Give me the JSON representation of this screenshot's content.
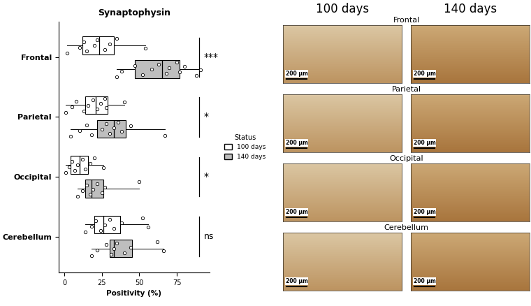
{
  "chart_data": {
    "type": "box",
    "title": "Synaptophysin",
    "orientation": "horizontal",
    "categories": [
      "Frontal",
      "Parietal",
      "Occipital",
      "Cerebellum"
    ],
    "x_label": "Positivity (%)",
    "xlim": [
      -4,
      97
    ],
    "xticks": [
      0,
      25,
      50,
      75
    ],
    "legend": "center left",
    "legend_title": "Status",
    "series": [
      {
        "name": "100 days",
        "color": "#ffffff",
        "stats": [
          {
            "whislo": 2,
            "q1": 12,
            "median": 23,
            "q3": 33,
            "whishi": 54,
            "points": [
              2,
              10,
              13,
              15,
              20,
              22,
              27,
              30,
              35,
              54
            ]
          },
          {
            "whislo": 1,
            "q1": 14,
            "median": 21,
            "q3": 29,
            "whishi": 40,
            "points": [
              1,
              5,
              8,
              13,
              16,
              19,
              22,
              24,
              27,
              28,
              40
            ]
          },
          {
            "whislo": 1,
            "q1": 4,
            "median": 10,
            "q3": 16,
            "whishi": 26,
            "points": [
              1,
              3,
              5,
              7,
              9,
              12,
              14,
              17,
              20,
              26
            ]
          },
          {
            "whislo": 14,
            "q1": 20,
            "median": 26,
            "q3": 37,
            "whishi": 56,
            "points": [
              14,
              18,
              21,
              24,
              27,
              30,
              33,
              38,
              52,
              56
            ]
          }
        ]
      },
      {
        "name": "140 days",
        "color": "#bebebe",
        "stats": [
          {
            "whislo": 35,
            "q1": 47,
            "median": 65,
            "q3": 77,
            "whishi": 91,
            "points": [
              35,
              38,
              47,
              52,
              58,
              63,
              68,
              70,
              75,
              77,
              80,
              88,
              91
            ]
          },
          {
            "whislo": 4,
            "q1": 22,
            "median": 33,
            "q3": 41,
            "whishi": 67,
            "points": [
              4,
              10,
              15,
              18,
              25,
              28,
              30,
              33,
              36,
              38,
              44,
              67
            ]
          },
          {
            "whislo": 9,
            "q1": 14,
            "median": 18,
            "q3": 26,
            "whishi": 50,
            "points": [
              9,
              12,
              15,
              17,
              19,
              22,
              25,
              27,
              50
            ]
          },
          {
            "whislo": 18,
            "q1": 30,
            "median": 33,
            "q3": 45,
            "whishi": 66,
            "points": [
              18,
              22,
              28,
              31,
              33,
              35,
              40,
              44,
              62,
              66
            ]
          }
        ]
      }
    ],
    "significance": [
      "***",
      "*",
      "*",
      "ns"
    ]
  },
  "image_panels": {
    "columns": [
      "100 days",
      "140 days"
    ],
    "rows": [
      "Frontal",
      "Parietal",
      "Occipital",
      "Cerebellum"
    ],
    "scale_bar": "200 µm"
  }
}
